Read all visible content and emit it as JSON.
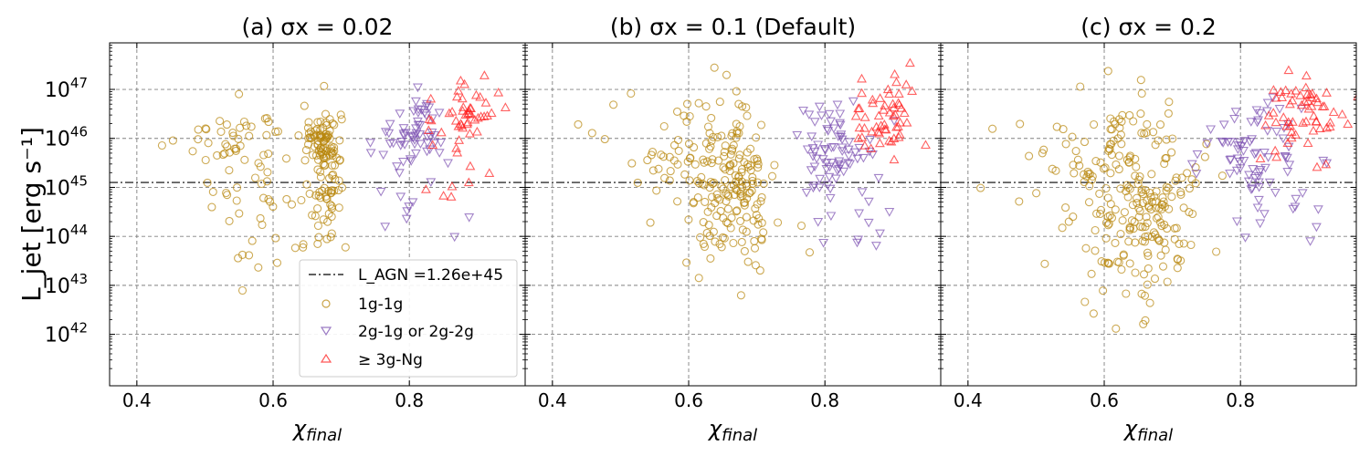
{
  "figure": {
    "ylabel": "L_jet [erg s⁻¹]",
    "xlabel": "χ_final"
  },
  "legend": {
    "items": [
      {
        "key": "agn",
        "label": "L_AGN =1.26e+45"
      },
      {
        "key": "g1",
        "label": "1g-1g"
      },
      {
        "key": "g2",
        "label": "2g-1g or 2g-2g"
      },
      {
        "key": "g3",
        "label": "≥ 3g-Ng"
      }
    ],
    "location": "lower-right of panel (a)"
  },
  "colors": {
    "g1": "#b8860b",
    "g2": "#7a4fb0",
    "g3": "#ff2020",
    "grid": "#808080",
    "agn_line": "#000000"
  },
  "chart_data": [
    {
      "type": "scatter",
      "title": "(a) σx = 0.02",
      "xlabel": "χ_final",
      "ylabel": "L_jet [erg s⁻¹]",
      "xlim": [
        0.36,
        0.97
      ],
      "ylim_log10": [
        40.95,
        47.95
      ],
      "yscale": "log",
      "xticks": [
        "0.4",
        "0.6",
        "0.8"
      ],
      "ytick_exponents": [
        "42",
        "43",
        "44",
        "45",
        "46",
        "47"
      ],
      "grid": true,
      "hline_log10": 45.1,
      "clusters": {
        "g1": [
          {
            "n": 70,
            "cx": 0.675,
            "sx": 0.012,
            "cy": 45.3,
            "sy": 0.7
          },
          {
            "n": 55,
            "cx": 0.67,
            "sx": 0.015,
            "cy": 46.0,
            "sy": 0.25
          },
          {
            "n": 45,
            "cx": 0.55,
            "sx": 0.04,
            "cy": 46.0,
            "sy": 0.35
          },
          {
            "n": 40,
            "cx": 0.6,
            "sx": 0.06,
            "cy": 44.6,
            "sy": 0.8
          }
        ],
        "g2": [
          {
            "n": 50,
            "cx": 0.815,
            "sx": 0.02,
            "cy": 46.1,
            "sy": 0.35
          },
          {
            "n": 18,
            "cx": 0.8,
            "sx": 0.04,
            "cy": 45.1,
            "sy": 0.7
          }
        ],
        "g3": [
          {
            "n": 45,
            "cx": 0.885,
            "sx": 0.022,
            "cy": 46.5,
            "sy": 0.4
          },
          {
            "n": 8,
            "cx": 0.88,
            "sx": 0.03,
            "cy": 45.3,
            "sy": 0.6
          }
        ]
      }
    },
    {
      "type": "scatter",
      "title": "(b) σx = 0.1 (Default)",
      "xlabel": "χ_final",
      "ylabel": "L_jet [erg s⁻¹]",
      "xlim": [
        0.36,
        0.97
      ],
      "ylim_log10": [
        40.95,
        47.95
      ],
      "yscale": "log",
      "xticks": [
        "0.4",
        "0.6",
        "0.8"
      ],
      "ytick_exponents": [
        "42",
        "43",
        "44",
        "45",
        "46",
        "47"
      ],
      "grid": true,
      "hline_log10": 45.1,
      "clusters": {
        "g1": [
          {
            "n": 110,
            "cx": 0.67,
            "sx": 0.03,
            "cy": 45.2,
            "sy": 0.8
          },
          {
            "n": 60,
            "cx": 0.6,
            "sx": 0.06,
            "cy": 45.7,
            "sy": 0.55
          },
          {
            "n": 50,
            "cx": 0.66,
            "sx": 0.04,
            "cy": 44.3,
            "sy": 0.7
          }
        ],
        "g2": [
          {
            "n": 60,
            "cx": 0.815,
            "sx": 0.03,
            "cy": 45.9,
            "sy": 0.45
          },
          {
            "n": 22,
            "cx": 0.82,
            "sx": 0.035,
            "cy": 44.9,
            "sy": 0.55
          }
        ],
        "g3": [
          {
            "n": 55,
            "cx": 0.89,
            "sx": 0.025,
            "cy": 46.4,
            "sy": 0.45
          }
        ]
      }
    },
    {
      "type": "scatter",
      "title": "(c) σx = 0.2",
      "xlabel": "χ_final",
      "ylabel": "L_jet [erg s⁻¹]",
      "xlim": [
        0.36,
        0.97
      ],
      "ylim_log10": [
        40.95,
        47.95
      ],
      "yscale": "log",
      "xticks": [
        "0.4",
        "0.6",
        "0.8"
      ],
      "ytick_exponents": [
        "42",
        "43",
        "44",
        "45",
        "46",
        "47"
      ],
      "grid": true,
      "hline_log10": 45.1,
      "clusters": {
        "g1": [
          {
            "n": 130,
            "cx": 0.66,
            "sx": 0.04,
            "cy": 45.0,
            "sy": 0.85
          },
          {
            "n": 60,
            "cx": 0.58,
            "sx": 0.07,
            "cy": 45.4,
            "sy": 0.7
          },
          {
            "n": 60,
            "cx": 0.66,
            "sx": 0.04,
            "cy": 43.8,
            "sy": 0.85
          }
        ],
        "g2": [
          {
            "n": 60,
            "cx": 0.81,
            "sx": 0.04,
            "cy": 45.8,
            "sy": 0.45
          },
          {
            "n": 22,
            "cx": 0.84,
            "sx": 0.035,
            "cy": 44.8,
            "sy": 0.6
          }
        ],
        "g3": [
          {
            "n": 60,
            "cx": 0.895,
            "sx": 0.03,
            "cy": 46.5,
            "sy": 0.4
          }
        ]
      }
    }
  ]
}
